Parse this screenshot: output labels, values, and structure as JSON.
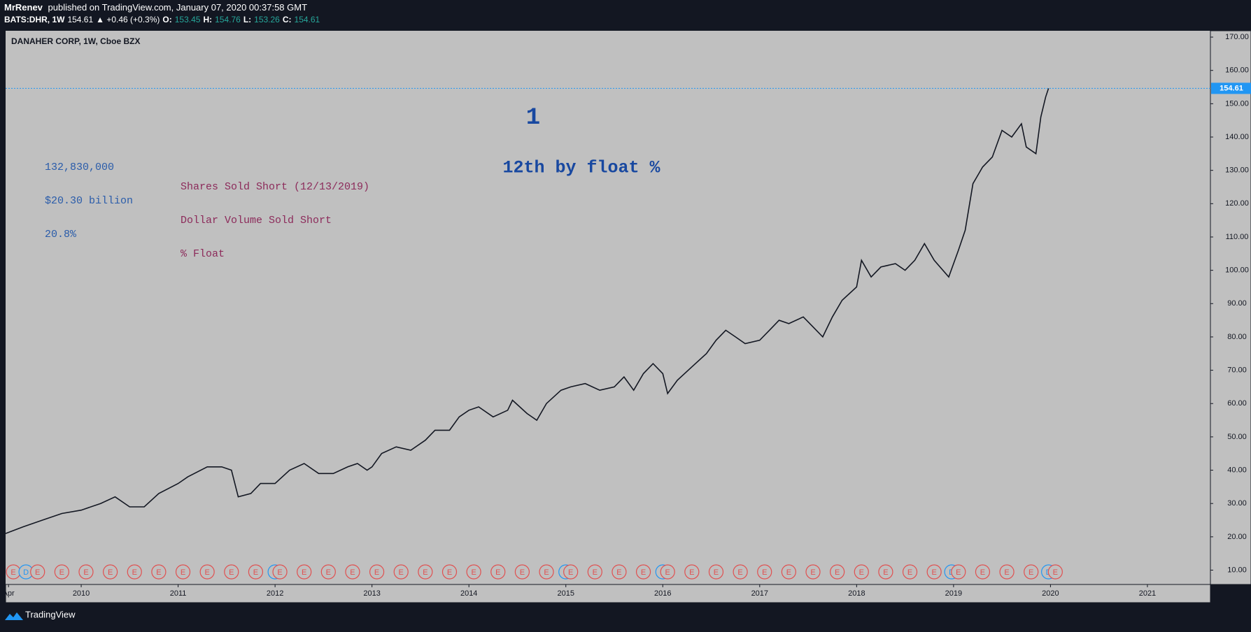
{
  "header": {
    "byline": [
      {
        "text": "MrRenev",
        "bold": true
      },
      {
        "text": " published on TradingView.com, January 07, 2020 00:37:58 GMT",
        "bold": false
      }
    ],
    "quote": [
      {
        "text": "BATS:DHR, 1W",
        "color": "#ffffff",
        "bold": true
      },
      {
        "text": "154.61",
        "color": "#ffffff",
        "bold": false
      },
      {
        "text": "▲ +0.46 (+0.3%)",
        "color": "#ffffff",
        "bold": false
      },
      {
        "text": "O:",
        "color": "#ffffff",
        "bold": true
      },
      {
        "text": "153.45",
        "color": "#26a69a",
        "bold": false
      },
      {
        "text": "H:",
        "color": "#ffffff",
        "bold": true
      },
      {
        "text": "154.76",
        "color": "#26a69a",
        "bold": false
      },
      {
        "text": "L:",
        "color": "#ffffff",
        "bold": true
      },
      {
        "text": "153.26",
        "color": "#26a69a",
        "bold": false
      },
      {
        "text": "C:",
        "color": "#ffffff",
        "bold": true
      },
      {
        "text": "154.61",
        "color": "#26a69a",
        "bold": false
      }
    ]
  },
  "footer": {
    "brand": "TradingView"
  },
  "chart_data": {
    "type": "line",
    "title": "DANAHER CORP, 1W, Cboe BZX",
    "color": "#131722",
    "annotations": {
      "rank": "1",
      "rank_text": "12th by float %",
      "values": [
        "132,830,000",
        "$20.30 billion",
        "20.8%"
      ],
      "labels": [
        "Shares Sold Short (12/13/2019)",
        "Dollar Volume Sold Short",
        "% Float"
      ]
    },
    "last_price": 154.61,
    "x": [
      2009.22,
      2009.4,
      2009.6,
      2009.8,
      2010.0,
      2010.2,
      2010.35,
      2010.5,
      2010.65,
      2010.8,
      2011.0,
      2011.1,
      2011.3,
      2011.45,
      2011.55,
      2011.62,
      2011.75,
      2011.85,
      2012.0,
      2012.15,
      2012.3,
      2012.45,
      2012.6,
      2012.75,
      2012.85,
      2012.95,
      2013.0,
      2013.1,
      2013.25,
      2013.4,
      2013.55,
      2013.65,
      2013.8,
      2013.9,
      2014.0,
      2014.1,
      2014.25,
      2014.4,
      2014.45,
      2014.6,
      2014.7,
      2014.8,
      2014.95,
      2015.05,
      2015.2,
      2015.35,
      2015.5,
      2015.6,
      2015.7,
      2015.8,
      2015.9,
      2016.0,
      2016.05,
      2016.15,
      2016.3,
      2016.45,
      2016.55,
      2016.65,
      2016.75,
      2016.85,
      2017.0,
      2017.1,
      2017.2,
      2017.3,
      2017.45,
      2017.55,
      2017.65,
      2017.75,
      2017.85,
      2018.0,
      2018.05,
      2018.15,
      2018.25,
      2018.4,
      2018.5,
      2018.6,
      2018.7,
      2018.8,
      2018.95,
      2019.05,
      2019.12,
      2019.2,
      2019.3,
      2019.4,
      2019.5,
      2019.6,
      2019.7,
      2019.75,
      2019.85,
      2019.9,
      2019.95,
      2019.98
    ],
    "values": [
      21,
      23,
      25,
      27,
      28,
      30,
      32,
      29,
      29,
      33,
      36,
      38,
      41,
      41,
      40,
      32,
      33,
      36,
      36,
      40,
      42,
      39,
      39,
      41,
      42,
      40,
      41,
      45,
      47,
      46,
      49,
      52,
      52,
      56,
      58,
      59,
      56,
      58,
      61,
      57,
      55,
      60,
      64,
      65,
      66,
      64,
      65,
      68,
      64,
      69,
      72,
      69,
      63,
      67,
      71,
      75,
      79,
      82,
      80,
      78,
      79,
      82,
      85,
      84,
      86,
      83,
      80,
      86,
      91,
      95,
      103,
      98,
      101,
      102,
      100,
      103,
      108,
      103,
      98,
      106,
      112,
      126,
      131,
      134,
      142,
      140,
      144,
      137,
      135,
      146,
      152,
      154.61
    ],
    "xlim": [
      2009.22,
      2021.65
    ],
    "ylim": [
      5.7,
      171.9
    ],
    "xticks": [
      {
        "value": 2009.25,
        "label": "Apr"
      },
      2010,
      2011,
      2012,
      2013,
      2014,
      2015,
      2016,
      2017,
      2018,
      2019,
      2020,
      2021
    ],
    "yticks": [
      {
        "value": 10,
        "label": "10.00"
      },
      {
        "value": 20,
        "label": "20.00"
      },
      {
        "value": 30,
        "label": "30.00"
      },
      {
        "value": 40,
        "label": "40.00"
      },
      {
        "value": 50,
        "label": "50.00"
      },
      {
        "value": 60,
        "label": "60.00"
      },
      {
        "value": 70,
        "label": "70.00"
      },
      {
        "value": 80,
        "label": "80.00"
      },
      {
        "value": 90,
        "label": "90.00"
      },
      {
        "value": 100,
        "label": "100.00"
      },
      {
        "value": 110,
        "label": "110.00"
      },
      {
        "value": 120,
        "label": "120.00"
      },
      {
        "value": 130,
        "label": "130.00"
      },
      {
        "value": 140,
        "label": "140.00"
      },
      {
        "value": 150,
        "label": "150.00"
      },
      {
        "value": 160,
        "label": "160.00"
      },
      {
        "value": 170,
        "label": "170.00"
      }
    ],
    "events": [
      {
        "x": 2009.3,
        "label": "E"
      },
      {
        "x": 2009.43,
        "label": "D"
      },
      {
        "x": 2009.55,
        "label": "E"
      },
      {
        "x": 2009.8,
        "label": "E"
      },
      {
        "x": 2010.05,
        "label": "E"
      },
      {
        "x": 2010.3,
        "label": "E"
      },
      {
        "x": 2010.55,
        "label": "E"
      },
      {
        "x": 2010.8,
        "label": "E"
      },
      {
        "x": 2011.05,
        "label": "E"
      },
      {
        "x": 2011.3,
        "label": "E"
      },
      {
        "x": 2011.55,
        "label": "E"
      },
      {
        "x": 2011.8,
        "label": "E"
      },
      {
        "x": 2012.0,
        "label": "D"
      },
      {
        "x": 2012.05,
        "label": "E"
      },
      {
        "x": 2012.3,
        "label": "E"
      },
      {
        "x": 2012.55,
        "label": "E"
      },
      {
        "x": 2012.8,
        "label": "E"
      },
      {
        "x": 2013.05,
        "label": "E"
      },
      {
        "x": 2013.3,
        "label": "E"
      },
      {
        "x": 2013.55,
        "label": "E"
      },
      {
        "x": 2013.8,
        "label": "E"
      },
      {
        "x": 2014.05,
        "label": "E"
      },
      {
        "x": 2014.3,
        "label": "E"
      },
      {
        "x": 2014.55,
        "label": "E"
      },
      {
        "x": 2014.8,
        "label": "E"
      },
      {
        "x": 2015.0,
        "label": "D"
      },
      {
        "x": 2015.05,
        "label": "E"
      },
      {
        "x": 2015.3,
        "label": "E"
      },
      {
        "x": 2015.55,
        "label": "E"
      },
      {
        "x": 2015.8,
        "label": "E"
      },
      {
        "x": 2016.0,
        "label": "D"
      },
      {
        "x": 2016.05,
        "label": "E"
      },
      {
        "x": 2016.3,
        "label": "E"
      },
      {
        "x": 2016.55,
        "label": "E"
      },
      {
        "x": 2016.8,
        "label": "E"
      },
      {
        "x": 2017.05,
        "label": "E"
      },
      {
        "x": 2017.3,
        "label": "E"
      },
      {
        "x": 2017.55,
        "label": "E"
      },
      {
        "x": 2017.8,
        "label": "E"
      },
      {
        "x": 2018.05,
        "label": "E"
      },
      {
        "x": 2018.3,
        "label": "E"
      },
      {
        "x": 2018.55,
        "label": "E"
      },
      {
        "x": 2018.8,
        "label": "E"
      },
      {
        "x": 2018.98,
        "label": "D"
      },
      {
        "x": 2019.05,
        "label": "E"
      },
      {
        "x": 2019.3,
        "label": "E"
      },
      {
        "x": 2019.55,
        "label": "E"
      },
      {
        "x": 2019.8,
        "label": "E"
      },
      {
        "x": 2019.98,
        "label": "D"
      },
      {
        "x": 2020.05,
        "label": "E"
      }
    ]
  }
}
